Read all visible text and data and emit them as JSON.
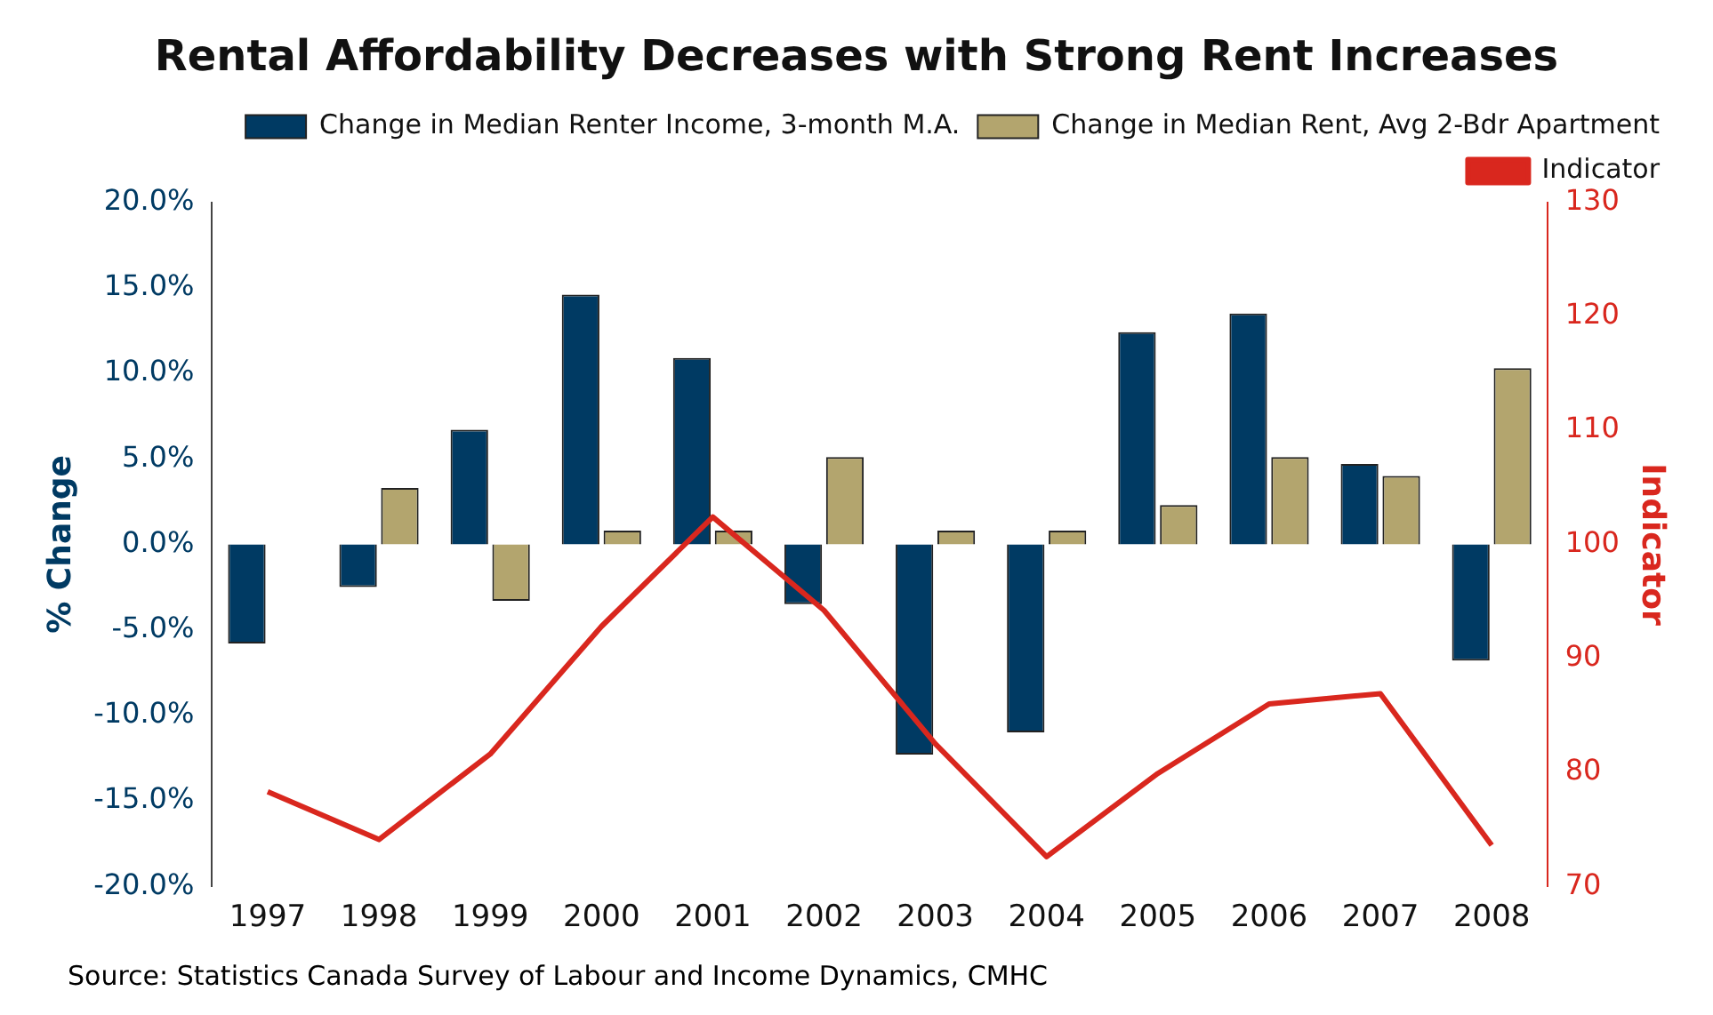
{
  "chart_data": {
    "type": "bar",
    "title": "Rental Affordability Decreases with Strong Rent Increases",
    "ylabel": "% Change",
    "y2label": "Indicator",
    "categories": [
      "1997",
      "1998",
      "1999",
      "2000",
      "2001",
      "2002",
      "2003",
      "2004",
      "2005",
      "2006",
      "2007",
      "2008"
    ],
    "series": [
      {
        "name": "Change in Median Renter Income, 3-month M.A.",
        "color": "#003a63",
        "values": [
          -5.8,
          -2.5,
          6.7,
          14.6,
          10.9,
          -3.5,
          -12.3,
          -11.0,
          12.4,
          13.5,
          4.7,
          -6.8
        ]
      },
      {
        "name": "Change in Median Rent, Avg 2-Bdr Apartment",
        "color": "#b3a56e",
        "values": [
          null,
          3.3,
          -3.3,
          0.8,
          0.8,
          5.1,
          0.8,
          0.8,
          2.3,
          5.1,
          4.0,
          10.3
        ]
      },
      {
        "name": "Indicator",
        "type": "line",
        "axis": "y2",
        "color": "#d9271e",
        "values": [
          78.3,
          74.1,
          81.6,
          92.8,
          102.4,
          94.2,
          82.5,
          72.6,
          79.9,
          86.0,
          86.9,
          73.6
        ]
      }
    ],
    "ylim": [
      -20,
      20
    ],
    "yticks": [
      {
        "value": -20,
        "label": "-20.0%"
      },
      {
        "value": -15,
        "label": "-15.0%"
      },
      {
        "value": -10,
        "label": "-10.0%"
      },
      {
        "value": -5,
        "label": "-5.0%"
      },
      {
        "value": 0,
        "label": "0.0%"
      },
      {
        "value": 5,
        "label": "5.0%"
      },
      {
        "value": 10,
        "label": "10.0%"
      },
      {
        "value": 15,
        "label": "15.0%"
      },
      {
        "value": 20,
        "label": "20.0%"
      }
    ],
    "y2lim": [
      70,
      130
    ],
    "y2ticks": [
      70,
      80,
      90,
      100,
      110,
      120,
      130
    ],
    "legend": "top right",
    "grid": false,
    "marker": "none",
    "line_style": "solid",
    "annotations": [
      "Source: Statistics Canada Survey of Labour and Income Dynamics, CMHC"
    ]
  }
}
